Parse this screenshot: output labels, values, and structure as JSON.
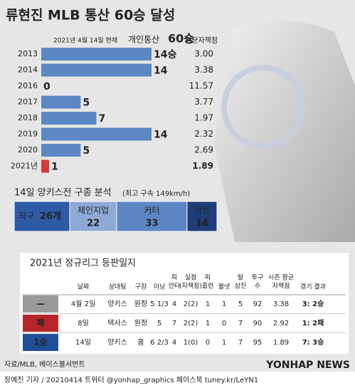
{
  "chart_data": {
    "type": "bar",
    "title": "류현진 MLB 통산 60승 달성",
    "note": "2021년 4월 14일 현재",
    "highlight": "개인통산",
    "highlight_value": "60승",
    "era_header": "평균자책점",
    "categories": [
      "2013",
      "2014",
      "2016",
      "2017",
      "2018",
      "2019",
      "2020",
      "2021년"
    ],
    "values": [
      14,
      14,
      0,
      5,
      7,
      14,
      5,
      1
    ],
    "value_labels": [
      "14승",
      "14",
      "0",
      "5",
      "7",
      "14",
      "5",
      "1"
    ],
    "era": [
      "3.00",
      "3.38",
      "11.57",
      "3.77",
      "1.97",
      "2.32",
      "2.69",
      "1.89"
    ],
    "colors": [
      "#5b87c3",
      "#5b87c3",
      "#5b87c3",
      "#5b87c3",
      "#5b87c3",
      "#5b87c3",
      "#5b87c3",
      "#d83a3a"
    ],
    "xlim": [
      0,
      14
    ]
  },
  "pitches": {
    "title": "14일 양키스전 구종 분석",
    "subtitle": "(최고 구속 149km/h)",
    "names": [
      "직구",
      "체인지업",
      "커터",
      "커브"
    ],
    "values": [
      26,
      22,
      33,
      14
    ],
    "value_labels": [
      "26개",
      "22",
      "33",
      "14"
    ],
    "colors": [
      "#2f5ba6",
      "#8ea9d6",
      "#5f86c4",
      "#1f3d78"
    ]
  },
  "table": {
    "title": "2021년 정규리그 등판일지",
    "header": [
      [],
      [
        "날짜"
      ],
      [
        "상대팀"
      ],
      [
        "구장"
      ],
      [
        "이닝"
      ],
      [
        "피",
        "안타"
      ],
      [
        "실점",
        "(자책점)"
      ],
      [
        "피",
        "홈런"
      ],
      [
        "볼넷"
      ],
      [
        "탈",
        "삼진"
      ],
      [
        "투구",
        "수"
      ],
      [
        "시즌 평균",
        "자책점"
      ],
      [
        "경기 결과"
      ]
    ],
    "rows": [
      [
        "—",
        "4월 2일",
        "양키스",
        "원정",
        "5 1/3",
        "4",
        "2(2)",
        "1",
        "1",
        "5",
        "92",
        "3.38",
        "3: 2승"
      ],
      [
        "패",
        "8일",
        "텍사스",
        "원정",
        "5",
        "7",
        "2(2)",
        "1",
        "0",
        "7",
        "90",
        "2.92",
        "1: 2패"
      ],
      [
        "1승",
        "14일",
        "양키스",
        "홈",
        "6 2/3",
        "4",
        "1(0)",
        "0",
        "1",
        "7",
        "95",
        "1.89",
        "7: 3승"
      ]
    ],
    "badge_colors": [
      "#9a9a9a",
      "#b8262b",
      "#1f4f96"
    ]
  },
  "footer": {
    "source": "자료/MLB, 베이스볼서번트",
    "credit": "장예진 기자 / 20210414 트위터 @yonhap_graphics  페이스북 tuney.kr/LeYN1",
    "brand": "YONHAP NEWS"
  }
}
